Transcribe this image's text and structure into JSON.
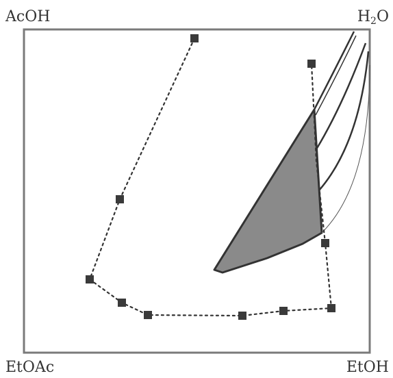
{
  "corners": {
    "top_left": "AcOH",
    "top_right_base": "H",
    "top_right_sub": "2",
    "top_right_tail": "O",
    "bottom_left": "EtOAc",
    "bottom_right": "EtOH"
  },
  "colors": {
    "frame": "#7a7a7a",
    "region_fill": "#8a8a8a",
    "line": "#333333",
    "marker": "#3a3a3a"
  }
}
